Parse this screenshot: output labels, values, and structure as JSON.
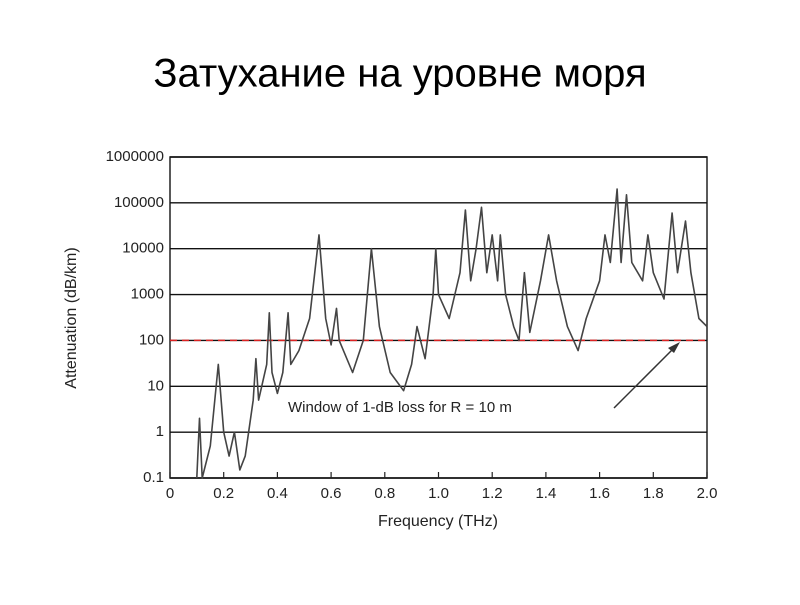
{
  "title": "Затухание на уровне моря",
  "chart_data": {
    "type": "line",
    "xlabel": "Frequency (THz)",
    "ylabel": "Attenuation (dB/km)",
    "x": [
      0.1,
      0.11,
      0.12,
      0.15,
      0.18,
      0.2,
      0.22,
      0.24,
      0.26,
      0.28,
      0.31,
      0.32,
      0.33,
      0.36,
      0.37,
      0.38,
      0.4,
      0.42,
      0.44,
      0.45,
      0.48,
      0.52,
      0.555,
      0.58,
      0.6,
      0.62,
      0.63,
      0.68,
      0.72,
      0.75,
      0.78,
      0.82,
      0.87,
      0.9,
      0.92,
      0.95,
      0.98,
      0.99,
      1.0,
      1.04,
      1.08,
      1.1,
      1.12,
      1.14,
      1.16,
      1.18,
      1.2,
      1.22,
      1.23,
      1.25,
      1.28,
      1.3,
      1.32,
      1.34,
      1.38,
      1.41,
      1.44,
      1.48,
      1.52,
      1.55,
      1.6,
      1.62,
      1.64,
      1.665,
      1.68,
      1.7,
      1.72,
      1.76,
      1.78,
      1.8,
      1.84,
      1.87,
      1.89,
      1.92,
      1.94,
      1.97,
      2.0
    ],
    "values": [
      0.1,
      2,
      0.1,
      0.5,
      30,
      1,
      0.3,
      1,
      0.15,
      0.3,
      5,
      40,
      5,
      30,
      400,
      20,
      7,
      20,
      400,
      30,
      60,
      300,
      20000,
      300,
      80,
      500,
      100,
      20,
      100,
      10000,
      200,
      20,
      8,
      30,
      200,
      40,
      1000,
      10000,
      1000,
      300,
      3000,
      70000,
      2000,
      10000,
      80000,
      3000,
      20000,
      2000,
      20000,
      1000,
      200,
      100,
      3000,
      150,
      2000,
      20000,
      2000,
      200,
      60,
      300,
      2000,
      20000,
      5000,
      200000,
      5000,
      150000,
      5000,
      2000,
      20000,
      3000,
      800,
      60000,
      3000,
      40000,
      3000,
      300,
      200
    ],
    "color": "#444444",
    "log_y": true,
    "xlim": [
      0,
      2.0
    ],
    "ylim": [
      0.1,
      1000000
    ],
    "xticks": [
      0,
      0.2,
      0.4,
      0.6,
      0.8,
      {
        "value": 1.0,
        "label": "1.0"
      },
      1.2,
      1.4,
      1.6,
      1.8,
      {
        "value": 2.0,
        "label": "2.0"
      }
    ],
    "yticks": [
      0.1,
      1,
      10,
      100,
      1000,
      10000,
      100000,
      1000000
    ],
    "grid": true,
    "reference_line": {
      "value": 100,
      "color": "#dd2222",
      "dashed": true
    },
    "annotation": "Window of 1-dB loss for R = 10 m"
  }
}
